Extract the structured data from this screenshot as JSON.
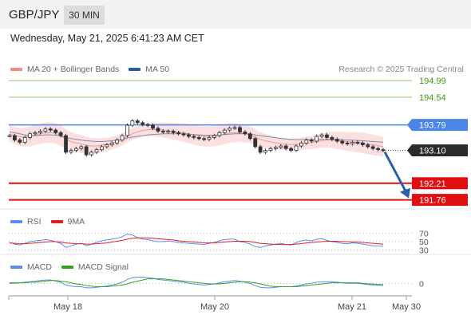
{
  "header": {
    "symbol": "GBP/JPY",
    "timeframe": "30 MIN",
    "datetime": "Wednesday, May 21, 2025 6:41:23 AM CET"
  },
  "main_legend": [
    {
      "label": "MA 20 + Bollinger Bands",
      "color": "#f28b82"
    },
    {
      "label": "MA 50",
      "color": "#2c5aa0"
    }
  ],
  "credit": "Research © 2025 Trading Central",
  "rsi_legend": [
    {
      "label": "RSI",
      "color": "#5b8def"
    },
    {
      "label": "9MA",
      "color": "#e02020"
    }
  ],
  "macd_legend": [
    {
      "label": "MACD",
      "color": "#5b8def"
    },
    {
      "label": "MACD Signal",
      "color": "#3aa020"
    }
  ],
  "colors": {
    "target_line": "#8fc96f",
    "target_label": "#3a9a10",
    "pivot_line": "#4a86e8",
    "support_line": "#e01010",
    "candle": "#333333",
    "band_fill": "#fbd7d7",
    "arrow": "#2b5fa8"
  },
  "chart_data": [
    {
      "type": "candlestick",
      "name": "price",
      "ylim": [
        191.6,
        195.1
      ],
      "x_tick_labels": [
        "May 18",
        "May 20",
        "May 21",
        "May 30"
      ],
      "levels": [
        {
          "value": 194.99,
          "label": "194.99",
          "kind": "target"
        },
        {
          "value": 194.54,
          "label": "194.54",
          "kind": "target"
        },
        {
          "value": 193.79,
          "label": "193.79",
          "kind": "pivot"
        },
        {
          "value": 193.1,
          "label": "193.10",
          "kind": "current"
        },
        {
          "value": 192.21,
          "label": "192.21",
          "kind": "support"
        },
        {
          "value": 191.76,
          "label": "191.76",
          "kind": "support"
        }
      ],
      "close": [
        193.5,
        193.38,
        193.32,
        193.45,
        193.55,
        193.58,
        193.62,
        193.68,
        193.65,
        193.58,
        193.5,
        193.05,
        193.1,
        193.15,
        193.2,
        192.98,
        193.05,
        193.12,
        193.2,
        193.25,
        193.3,
        193.38,
        193.5,
        193.78,
        193.9,
        193.85,
        193.8,
        193.78,
        193.7,
        193.62,
        193.6,
        193.62,
        193.58,
        193.55,
        193.52,
        193.48,
        193.45,
        193.42,
        193.4,
        193.45,
        193.5,
        193.58,
        193.65,
        193.7,
        193.72,
        193.6,
        193.55,
        193.42,
        193.2,
        193.05,
        193.1,
        193.15,
        193.18,
        193.22,
        193.15,
        193.1,
        193.22,
        193.3,
        193.38,
        193.35,
        193.48,
        193.52,
        193.45,
        193.4,
        193.35,
        193.3,
        193.28,
        193.32,
        193.3,
        193.25,
        193.2,
        193.15,
        193.12,
        193.1
      ],
      "ma20": [
        193.55,
        193.5,
        193.47,
        193.46,
        193.48,
        193.52,
        193.55,
        193.58,
        193.58,
        193.56,
        193.5,
        193.4,
        193.34,
        193.3,
        193.28,
        193.24,
        193.22,
        193.22,
        193.24,
        193.26,
        193.3,
        193.34,
        193.4,
        193.48,
        193.55,
        193.6,
        193.64,
        193.66,
        193.67,
        193.66,
        193.65,
        193.64,
        193.62,
        193.6,
        193.58,
        193.55,
        193.52,
        193.5,
        193.48,
        193.48,
        193.49,
        193.51,
        193.54,
        193.57,
        193.58,
        193.57,
        193.55,
        193.52,
        193.46,
        193.4,
        193.36,
        193.33,
        193.3,
        193.28,
        193.27,
        193.26,
        193.26,
        193.28,
        193.3,
        193.31,
        193.34,
        193.37,
        193.38,
        193.38,
        193.37,
        193.36,
        193.34,
        193.33,
        193.32,
        193.3,
        193.28,
        193.25,
        193.23,
        193.2
      ],
      "ma50": [
        193.6,
        193.58,
        193.55,
        193.52,
        193.5,
        193.5,
        193.51,
        193.52,
        193.52,
        193.51,
        193.49,
        193.45,
        193.42,
        193.4,
        193.38,
        193.36,
        193.35,
        193.34,
        193.34,
        193.35,
        193.36,
        193.38,
        193.4,
        193.43,
        193.46,
        193.48,
        193.5,
        193.52,
        193.53,
        193.54,
        193.55,
        193.55,
        193.55,
        193.55,
        193.55,
        193.54,
        193.53,
        193.52,
        193.51,
        193.51,
        193.51,
        193.52,
        193.53,
        193.54,
        193.55,
        193.55,
        193.55,
        193.54,
        193.52,
        193.5,
        193.48,
        193.46,
        193.44,
        193.42,
        193.41,
        193.4,
        193.39,
        193.39,
        193.39,
        193.39,
        193.4,
        193.4,
        193.4,
        193.4,
        193.4,
        193.39,
        193.38,
        193.38,
        193.37,
        193.36,
        193.35,
        193.34,
        193.33,
        193.32
      ]
    },
    {
      "type": "line",
      "name": "RSI",
      "ylim": [
        25,
        75
      ],
      "y_tick_labels": [
        {
          "value": 70,
          "label": "70"
        },
        {
          "value": 50,
          "label": "50"
        },
        {
          "value": 30,
          "label": "30"
        }
      ],
      "rsi": [
        48,
        44,
        42,
        46,
        50,
        52,
        53,
        55,
        53,
        50,
        46,
        36,
        40,
        44,
        46,
        40,
        44,
        48,
        52,
        54,
        56,
        58,
        62,
        68,
        66,
        60,
        56,
        55,
        52,
        50,
        50,
        52,
        50,
        48,
        47,
        46,
        45,
        44,
        43,
        46,
        48,
        52,
        55,
        56,
        56,
        50,
        48,
        44,
        38,
        36,
        40,
        42,
        44,
        46,
        43,
        42,
        48,
        52,
        54,
        52,
        56,
        57,
        53,
        50,
        48,
        46,
        45,
        47,
        46,
        44,
        42,
        40,
        40,
        39
      ],
      "ma9": [
        47,
        46,
        45,
        45,
        46,
        47,
        48,
        49,
        50,
        50,
        49,
        47,
        46,
        45,
        45,
        44,
        44,
        45,
        46,
        47,
        49,
        51,
        53,
        56,
        58,
        59,
        59,
        59,
        58,
        57,
        56,
        55,
        54,
        52,
        51,
        50,
        49,
        48,
        47,
        47,
        47,
        48,
        49,
        50,
        51,
        51,
        51,
        50,
        48,
        46,
        45,
        44,
        43,
        43,
        43,
        43,
        44,
        45,
        47,
        48,
        49,
        50,
        51,
        51,
        51,
        50,
        50,
        49,
        49,
        48,
        47,
        46,
        45,
        44
      ]
    },
    {
      "type": "line",
      "name": "MACD",
      "ylim": [
        -0.18,
        0.16
      ],
      "y_tick_labels": [
        {
          "value": 0,
          "label": "0"
        }
      ],
      "macd": [
        0.0,
        0.0,
        0.01,
        0.02,
        0.03,
        0.04,
        0.05,
        0.06,
        0.06,
        0.04,
        0.02,
        -0.03,
        -0.05,
        -0.06,
        -0.06,
        -0.08,
        -0.08,
        -0.07,
        -0.06,
        -0.05,
        -0.03,
        -0.01,
        0.02,
        0.07,
        0.1,
        0.11,
        0.11,
        0.1,
        0.09,
        0.07,
        0.06,
        0.05,
        0.04,
        0.03,
        0.02,
        0.0,
        -0.01,
        -0.02,
        -0.03,
        -0.02,
        -0.01,
        0.01,
        0.03,
        0.04,
        0.05,
        0.04,
        0.02,
        0.0,
        -0.04,
        -0.07,
        -0.08,
        -0.08,
        -0.07,
        -0.06,
        -0.06,
        -0.06,
        -0.05,
        -0.03,
        -0.01,
        0.0,
        0.02,
        0.03,
        0.03,
        0.03,
        0.02,
        0.01,
        0.0,
        0.0,
        0.0,
        -0.01,
        -0.02,
        -0.03,
        -0.03,
        -0.04
      ],
      "signal": [
        0.01,
        0.01,
        0.01,
        0.01,
        0.02,
        0.02,
        0.03,
        0.04,
        0.05,
        0.05,
        0.04,
        0.03,
        0.01,
        -0.01,
        -0.02,
        -0.04,
        -0.05,
        -0.06,
        -0.06,
        -0.06,
        -0.05,
        -0.04,
        -0.03,
        -0.01,
        0.02,
        0.04,
        0.06,
        0.08,
        0.08,
        0.08,
        0.08,
        0.07,
        0.06,
        0.05,
        0.04,
        0.03,
        0.02,
        0.01,
        0.0,
        -0.01,
        -0.01,
        -0.01,
        0.0,
        0.01,
        0.02,
        0.03,
        0.03,
        0.02,
        0.01,
        -0.01,
        -0.03,
        -0.05,
        -0.06,
        -0.06,
        -0.06,
        -0.06,
        -0.06,
        -0.05,
        -0.04,
        -0.03,
        -0.02,
        -0.01,
        0.0,
        0.01,
        0.01,
        0.01,
        0.01,
        0.01,
        0.01,
        0.0,
        -0.01,
        -0.01,
        -0.02,
        -0.02
      ]
    }
  ]
}
